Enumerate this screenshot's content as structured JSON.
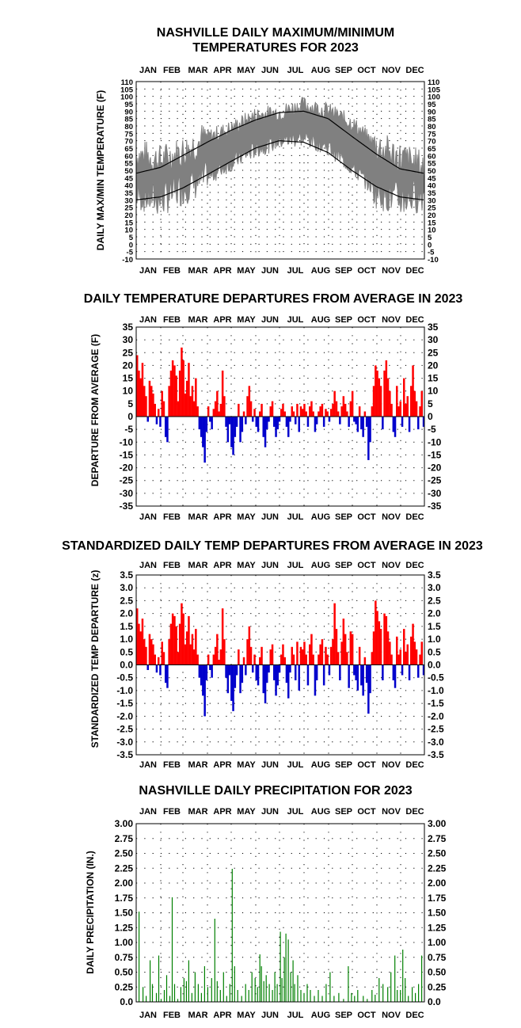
{
  "months": [
    "JAN",
    "FEB",
    "MAR",
    "APR",
    "MAY",
    "JUN",
    "JUL",
    "AUG",
    "SEP",
    "OCT",
    "NOV",
    "DEC"
  ],
  "colors": {
    "observed": "#808080",
    "normal": "#000000",
    "above": "#ff0000",
    "below": "#0000cc",
    "precip": "#008000",
    "grid": "#000000"
  },
  "chart_data": [
    {
      "id": "maxmin",
      "type": "area",
      "title_line1": "NASHVILLE DAILY MAXIMUM/MINIMUM",
      "title_line2": "TEMPERATURES FOR 2023",
      "ylabel": "DAILY MAX/MIN TEMPERATURE (F)",
      "ylim": [
        -10,
        110
      ],
      "yticks": [
        "110",
        "105",
        "100",
        "95",
        "90",
        "85",
        "80",
        "75",
        "70",
        "65",
        "60",
        "55",
        "50",
        "45",
        "40",
        "35",
        "30",
        "25",
        "20",
        "15",
        "10",
        "5",
        "0",
        "-5",
        "-10"
      ],
      "x": [
        "Jan 1",
        "Feb 1",
        "Mar 1",
        "Apr 1",
        "May 1",
        "Jun 1",
        "Jul 1",
        "Aug 1",
        "Sep 1",
        "Oct 1",
        "Nov 1",
        "Dec 1",
        "Dec 31"
      ],
      "series": [
        {
          "role": "observed_high",
          "values": [
            60,
            56,
            62,
            72,
            78,
            87,
            89,
            94,
            90,
            82,
            66,
            58,
            52
          ]
        },
        {
          "role": "observed_low",
          "values": [
            34,
            30,
            38,
            45,
            55,
            64,
            70,
            72,
            66,
            52,
            36,
            30,
            34
          ]
        },
        {
          "role": "normal_high",
          "values": [
            48,
            52,
            60,
            69,
            77,
            84,
            89,
            90,
            85,
            73,
            61,
            51,
            48
          ]
        },
        {
          "role": "normal_low",
          "values": [
            30,
            32,
            38,
            47,
            56,
            65,
            70,
            69,
            62,
            50,
            39,
            32,
            30
          ]
        }
      ]
    },
    {
      "id": "departures",
      "type": "bar",
      "title_line1": "DAILY TEMPERATURE DEPARTURES FROM AVERAGE IN 2023",
      "ylabel": "DEPARTURE FROM AVERAGE (F)",
      "ylim": [
        -35,
        35
      ],
      "yticks": [
        "35",
        "30",
        "25",
        "20",
        "15",
        "10",
        "5",
        "0",
        "-5",
        "-10",
        "-15",
        "-20",
        "-25",
        "-30",
        "-35"
      ],
      "values": [
        24,
        18,
        15,
        21,
        12,
        8,
        -2,
        14,
        12,
        9,
        5,
        -3,
        3,
        -4,
        10,
        6,
        -8,
        -10,
        12,
        18,
        22,
        20,
        16,
        6,
        18,
        27,
        22,
        9,
        14,
        21,
        8,
        12,
        6,
        15,
        4,
        -5,
        -8,
        -12,
        -18,
        -6,
        4,
        -2,
        -5,
        3,
        6,
        10,
        2,
        5,
        18,
        8,
        -4,
        -10,
        -3,
        -12,
        -15,
        -8,
        -4,
        5,
        -10,
        -6,
        2,
        -3,
        8,
        12,
        6,
        -2,
        3,
        -4,
        -6,
        2,
        5,
        -8,
        -12,
        -5,
        -2,
        4,
        6,
        -4,
        -8,
        -5,
        -2,
        3,
        5,
        2,
        -4,
        -8,
        -2,
        4,
        2,
        -3,
        5,
        -6,
        4,
        3,
        5,
        2,
        -4,
        4,
        6,
        2,
        -6,
        -3,
        2,
        4,
        5,
        -4,
        3,
        2,
        -2,
        3,
        5,
        10,
        6,
        2,
        -3,
        4,
        8,
        5,
        2,
        -4,
        6,
        10,
        -2,
        -3,
        -6,
        4,
        -5,
        -8,
        2,
        -4,
        -17,
        -10,
        4,
        12,
        20,
        18,
        15,
        12,
        -5,
        18,
        22,
        15,
        10,
        5,
        -6,
        -8,
        12,
        4,
        6,
        -4,
        15,
        5,
        8,
        -6,
        12,
        20,
        10,
        6,
        -5,
        4,
        10,
        -4
      ],
      "zero_line": 0
    },
    {
      "id": "standardized",
      "type": "bar",
      "title_line1": "STANDARDIZED DAILY TEMP DEPARTURES FROM AVERAGE IN 2023",
      "ylabel": "STANDARDIZED TEMP DEPARTURE (z)",
      "ylim": [
        -3.5,
        3.5
      ],
      "yticks": [
        "3.5",
        "3.0",
        "2.5",
        "2.0",
        "1.5",
        "1.0",
        "0.5",
        "0.0",
        "-0.5",
        "-1.0",
        "-1.5",
        "-2.0",
        "-2.5",
        "-3.0",
        "-3.5"
      ],
      "values": [
        2.2,
        1.6,
        1.3,
        1.8,
        1.0,
        0.7,
        -0.2,
        1.2,
        1.0,
        0.8,
        0.4,
        -0.3,
        0.3,
        -0.4,
        0.9,
        0.5,
        -0.7,
        -0.9,
        1.0,
        1.6,
        2.0,
        1.9,
        1.5,
        0.5,
        1.6,
        2.4,
        2.0,
        0.8,
        1.3,
        1.9,
        0.8,
        1.2,
        0.6,
        1.4,
        0.4,
        -0.5,
        -0.8,
        -1.2,
        -2.0,
        -0.6,
        0.4,
        -0.2,
        -0.5,
        0.4,
        0.7,
        1.2,
        0.2,
        0.6,
        2.2,
        1.0,
        -0.5,
        -1.1,
        -0.4,
        -1.4,
        -1.8,
        -0.9,
        -0.4,
        0.6,
        -1.1,
        -0.7,
        0.3,
        -0.4,
        1.0,
        1.5,
        0.7,
        -0.3,
        0.4,
        -0.6,
        -0.8,
        0.3,
        0.7,
        -1.1,
        -1.5,
        -0.7,
        -0.3,
        0.6,
        0.8,
        -0.6,
        -1.2,
        -0.8,
        -0.3,
        0.4,
        0.8,
        0.3,
        -0.7,
        -1.3,
        -0.3,
        0.7,
        0.4,
        -0.6,
        0.9,
        -1.0,
        0.7,
        0.6,
        0.9,
        0.4,
        -0.8,
        0.8,
        1.2,
        0.4,
        -1.2,
        -0.6,
        0.4,
        0.8,
        1.0,
        -0.8,
        0.7,
        0.4,
        -0.4,
        0.7,
        1.0,
        2.4,
        1.4,
        0.5,
        -0.6,
        0.9,
        1.8,
        1.2,
        0.5,
        -0.9,
        1.3,
        1.2,
        -0.4,
        -0.6,
        -1.0,
        0.7,
        -0.8,
        -1.2,
        0.3,
        -0.7,
        -1.9,
        -1.1,
        0.5,
        1.3,
        2.5,
        2.1,
        1.7,
        1.4,
        -0.6,
        2.0,
        1.9,
        1.3,
        0.9,
        0.4,
        -0.6,
        -0.9,
        1.1,
        0.4,
        0.6,
        -0.4,
        1.4,
        0.5,
        0.8,
        -0.6,
        1.1,
        1.6,
        0.9,
        0.6,
        -0.5,
        0.4,
        0.9,
        -0.4
      ],
      "zero_line": 0
    },
    {
      "id": "precip",
      "type": "bar",
      "title_line1": "NASHVILLE DAILY PRECIPITATION FOR 2023",
      "ylabel": "DAILY PRECIPITATION (IN.)",
      "ylim": [
        0,
        3.0
      ],
      "yticks": [
        "3.00",
        "2.75",
        "2.50",
        "2.25",
        "2.00",
        "1.75",
        "1.50",
        "1.25",
        "1.00",
        "0.75",
        "0.50",
        "0.25",
        "0.0"
      ],
      "day_values": [
        [
          3,
          1.52
        ],
        [
          8,
          0.25
        ],
        [
          12,
          0.1
        ],
        [
          17,
          0.7
        ],
        [
          20,
          0.3
        ],
        [
          25,
          0.15
        ],
        [
          28,
          0.78
        ],
        [
          31,
          0.05
        ],
        [
          35,
          0.2
        ],
        [
          38,
          0.45
        ],
        [
          42,
          0.1
        ],
        [
          45,
          1.76
        ],
        [
          48,
          0.3
        ],
        [
          52,
          0.05
        ],
        [
          56,
          0.25
        ],
        [
          60,
          0.4
        ],
        [
          63,
          0.35
        ],
        [
          66,
          0.7
        ],
        [
          70,
          0.15
        ],
        [
          74,
          0.5
        ],
        [
          78,
          0.3
        ],
        [
          82,
          0.15
        ],
        [
          86,
          0.6
        ],
        [
          90,
          0.25
        ],
        [
          95,
          0.4
        ],
        [
          99,
          1.4
        ],
        [
          102,
          0.35
        ],
        [
          106,
          0.2
        ],
        [
          110,
          0.5
        ],
        [
          114,
          0.1
        ],
        [
          118,
          0.3
        ],
        [
          121,
          2.24
        ],
        [
          124,
          0.6
        ],
        [
          128,
          0.2
        ],
        [
          133,
          0.1
        ],
        [
          138,
          0.3
        ],
        [
          142,
          0.2
        ],
        [
          146,
          0.5
        ],
        [
          150,
          0.4
        ],
        [
          153,
          0.25
        ],
        [
          156,
          0.8
        ],
        [
          158,
          0.6
        ],
        [
          161,
          0.35
        ],
        [
          164,
          0.45
        ],
        [
          168,
          0.3
        ],
        [
          172,
          0.2
        ],
        [
          175,
          0.5
        ],
        [
          178,
          0.3
        ],
        [
          182,
          1.18
        ],
        [
          184,
          0.4
        ],
        [
          187,
          0.75
        ],
        [
          189,
          1.15
        ],
        [
          192,
          1.05
        ],
        [
          195,
          0.5
        ],
        [
          198,
          0.7
        ],
        [
          200,
          0.3
        ],
        [
          204,
          0.45
        ],
        [
          208,
          0.2
        ],
        [
          212,
          0.15
        ],
        [
          216,
          0.3
        ],
        [
          220,
          0.2
        ],
        [
          225,
          0.1
        ],
        [
          230,
          0.2
        ],
        [
          235,
          0.1
        ],
        [
          240,
          0.3
        ],
        [
          245,
          0.5
        ],
        [
          250,
          0.1
        ],
        [
          256,
          0.15
        ],
        [
          262,
          0.05
        ],
        [
          268,
          0.6
        ],
        [
          272,
          0.15
        ],
        [
          276,
          0.1
        ],
        [
          280,
          0.2
        ],
        [
          287,
          0.1
        ],
        [
          292,
          0.05
        ],
        [
          298,
          0.2
        ],
        [
          302,
          0.12
        ],
        [
          307,
          0.4
        ],
        [
          312,
          0.3
        ],
        [
          318,
          0.25
        ],
        [
          322,
          0.5
        ],
        [
          327,
          0.78
        ],
        [
          330,
          0.2
        ],
        [
          334,
          0.2
        ],
        [
          337,
          0.88
        ],
        [
          340,
          0.4
        ],
        [
          344,
          0.1
        ],
        [
          349,
          0.25
        ],
        [
          353,
          0.15
        ],
        [
          357,
          0.3
        ],
        [
          361,
          0.78
        ]
      ]
    }
  ]
}
